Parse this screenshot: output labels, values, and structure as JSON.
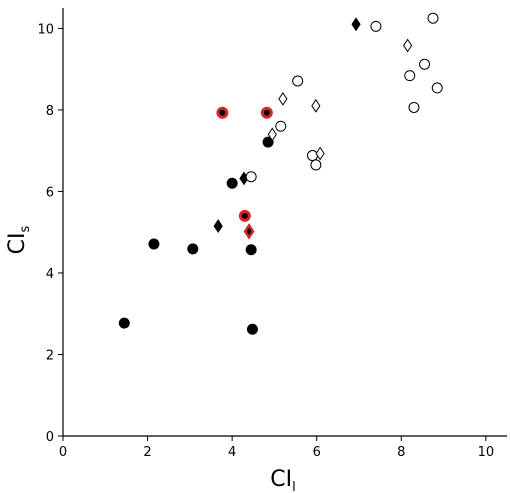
{
  "chart_data": {
    "type": "scatter",
    "xlabel": {
      "main": "CI",
      "sub": "l"
    },
    "ylabel": {
      "main": "CI",
      "sub": "s"
    },
    "xlim": [
      0,
      10.5
    ],
    "ylim": [
      0,
      10.5
    ],
    "xticks": [
      "0",
      "2",
      "4",
      "6",
      "8",
      "10"
    ],
    "yticks": [
      "0",
      "2",
      "4",
      "6",
      "8",
      "10"
    ],
    "grid": false,
    "colors": {
      "black": "#000000",
      "red": "#d62728",
      "white": "#ffffff"
    },
    "series": [
      {
        "marker": "circle-filled",
        "points": [
          {
            "x": 1.45,
            "y": 2.77
          },
          {
            "x": 2.15,
            "y": 4.71
          },
          {
            "x": 3.07,
            "y": 4.59
          },
          {
            "x": 4.0,
            "y": 6.2
          },
          {
            "x": 4.85,
            "y": 7.21
          },
          {
            "x": 4.45,
            "y": 4.57
          },
          {
            "x": 4.48,
            "y": 2.62
          }
        ]
      },
      {
        "marker": "circle-filled-red-edge",
        "points": [
          {
            "x": 3.77,
            "y": 7.93
          },
          {
            "x": 4.82,
            "y": 7.93
          },
          {
            "x": 4.3,
            "y": 5.4
          }
        ]
      },
      {
        "marker": "diamond-filled",
        "points": [
          {
            "x": 6.93,
            "y": 10.1
          },
          {
            "x": 4.28,
            "y": 6.32
          },
          {
            "x": 3.67,
            "y": 5.15
          }
        ]
      },
      {
        "marker": "diamond-filled-red-edge",
        "points": [
          {
            "x": 4.4,
            "y": 5.02
          }
        ]
      },
      {
        "marker": "circle-open",
        "points": [
          {
            "x": 7.4,
            "y": 10.05
          },
          {
            "x": 8.75,
            "y": 10.25
          },
          {
            "x": 8.55,
            "y": 9.12
          },
          {
            "x": 8.2,
            "y": 8.84
          },
          {
            "x": 8.85,
            "y": 8.54
          },
          {
            "x": 8.3,
            "y": 8.06
          },
          {
            "x": 5.55,
            "y": 8.71
          },
          {
            "x": 5.15,
            "y": 7.6
          },
          {
            "x": 4.45,
            "y": 6.36
          },
          {
            "x": 5.9,
            "y": 6.88
          },
          {
            "x": 5.98,
            "y": 6.65
          }
        ]
      },
      {
        "marker": "diamond-open",
        "points": [
          {
            "x": 8.15,
            "y": 9.58
          },
          {
            "x": 5.2,
            "y": 8.27
          },
          {
            "x": 5.98,
            "y": 8.1
          },
          {
            "x": 4.95,
            "y": 7.4
          },
          {
            "x": 6.08,
            "y": 6.93
          }
        ]
      }
    ]
  }
}
